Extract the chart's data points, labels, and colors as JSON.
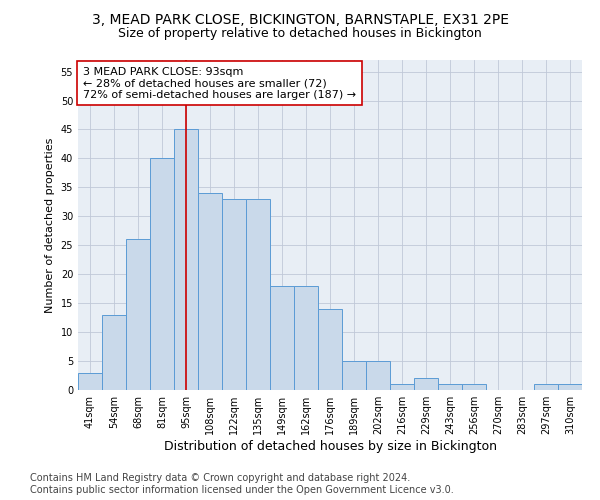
{
  "title": "3, MEAD PARK CLOSE, BICKINGTON, BARNSTAPLE, EX31 2PE",
  "subtitle": "Size of property relative to detached houses in Bickington",
  "xlabel": "Distribution of detached houses by size in Bickington",
  "ylabel": "Number of detached properties",
  "categories": [
    "41sqm",
    "54sqm",
    "68sqm",
    "81sqm",
    "95sqm",
    "108sqm",
    "122sqm",
    "135sqm",
    "149sqm",
    "162sqm",
    "176sqm",
    "189sqm",
    "202sqm",
    "216sqm",
    "229sqm",
    "243sqm",
    "256sqm",
    "270sqm",
    "283sqm",
    "297sqm",
    "310sqm"
  ],
  "values": [
    3,
    13,
    26,
    40,
    45,
    34,
    33,
    33,
    18,
    18,
    14,
    5,
    5,
    1,
    2,
    1,
    1,
    0,
    0,
    1,
    1
  ],
  "bar_color": "#c9d9ea",
  "bar_edge_color": "#5b9bd5",
  "vline_x_index": 4,
  "vline_color": "#cc0000",
  "annotation_text": "3 MEAD PARK CLOSE: 93sqm\n← 28% of detached houses are smaller (72)\n72% of semi-detached houses are larger (187) →",
  "annotation_box_color": "#ffffff",
  "annotation_box_edge": "#cc0000",
  "ylim": [
    0,
    57
  ],
  "yticks": [
    0,
    5,
    10,
    15,
    20,
    25,
    30,
    35,
    40,
    45,
    50,
    55
  ],
  "footer_line1": "Contains HM Land Registry data © Crown copyright and database right 2024.",
  "footer_line2": "Contains public sector information licensed under the Open Government Licence v3.0.",
  "bg_color": "#ffffff",
  "plot_bg_color": "#e8eef5",
  "grid_color": "#c0c8d8",
  "title_fontsize": 10,
  "subtitle_fontsize": 9,
  "xlabel_fontsize": 9,
  "ylabel_fontsize": 8,
  "tick_fontsize": 7,
  "annotation_fontsize": 8,
  "footer_fontsize": 7
}
